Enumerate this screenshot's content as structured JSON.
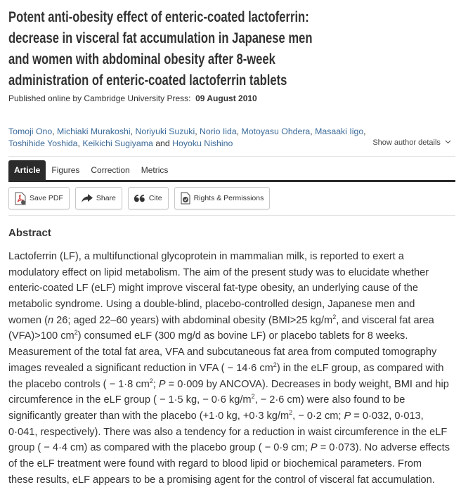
{
  "title_lines": [
    "Potent anti-obesity effect of enteric-coated lactoferrin:",
    "decrease in visceral fat accumulation in Japanese men",
    "and women with abdominal obesity after 8-week",
    "administration of enteric-coated lactoferrin tablets"
  ],
  "published": {
    "label": "Published online by Cambridge University Press:",
    "date": "09 August 2010"
  },
  "authors": {
    "row1": [
      "Tomoji Ono",
      "Michiaki Murakoshi",
      "Noriyuki Suzuki",
      "Norio Iida",
      "Motoyasu Ohdera",
      "Masaaki Iigo"
    ],
    "row2": [
      "Toshihide Yoshida",
      "Keikichi Sugiyama",
      "Hoyoku Nishino"
    ],
    "and": "and",
    "show_details": "Show author details"
  },
  "tabs": [
    {
      "label": "Article",
      "active": true
    },
    {
      "label": "Figures"
    },
    {
      "label": "Correction"
    },
    {
      "label": "Metrics"
    }
  ],
  "actions": [
    {
      "label": "Save PDF",
      "icon": "pdf-icon"
    },
    {
      "label": "Share",
      "icon": "share-icon"
    },
    {
      "label": "Cite",
      "icon": "quote-icon"
    },
    {
      "label": "Rights & Permissions",
      "icon": "document-check-icon"
    }
  ],
  "abstract": {
    "heading": "Abstract",
    "lines": [
      [
        {
          "t": "Lactoferrin (LF), a multifunctional glycoprotein in mammalian milk, is reported to exert a"
        }
      ],
      [
        {
          "t": "modulatory effect on lipid metabolism. The aim of the present study was to elucidate whether"
        }
      ],
      [
        {
          "t": "enteric-coated LF (eLF) might improve visceral fat-type obesity, an underlying cause of the"
        }
      ],
      [
        {
          "t": "metabolic syndrome. Using a double-blind, placebo-controlled design, Japanese men and"
        }
      ],
      [
        {
          "t": "women ("
        },
        {
          "t": "n",
          "i": true
        },
        {
          "t": " 26; aged 22–60 years) with abdominal obesity (BMI>25 kg/m"
        },
        {
          "t": "2",
          "sup": true
        },
        {
          "t": ", and visceral fat area"
        }
      ],
      [
        {
          "t": "(VFA)>100 cm"
        },
        {
          "t": "2",
          "sup": true
        },
        {
          "t": ") consumed eLF (300 mg/d as bovine LF) or placebo tablets for 8 weeks."
        }
      ],
      [
        {
          "t": "Measurement of the total fat area, VFA and subcutaneous fat area from computed tomography"
        }
      ],
      [
        {
          "t": "images revealed a significant reduction in VFA ( − 14·6 cm"
        },
        {
          "t": "2",
          "sup": true
        },
        {
          "t": ") in the eLF group, as compared with"
        }
      ],
      [
        {
          "t": "the placebo controls ( − 1·8 cm"
        },
        {
          "t": "2",
          "sup": true
        },
        {
          "t": "; "
        },
        {
          "t": "P",
          "i": true
        },
        {
          "t": " = 0·009 by ANCOVA). Decreases in body weight, BMI and hip"
        }
      ],
      [
        {
          "t": "circumference in the eLF group ( − 1·5 kg,  − 0·6 kg/m"
        },
        {
          "t": "2",
          "sup": true
        },
        {
          "t": ",  − 2·6 cm) were also found to be"
        }
      ],
      [
        {
          "t": "significantly greater than with the placebo (+1·0 kg, +0·3 kg/m"
        },
        {
          "t": "2",
          "sup": true
        },
        {
          "t": ",  − 0·2 cm; "
        },
        {
          "t": "P",
          "i": true
        },
        {
          "t": " = 0·032, 0·013,"
        }
      ],
      [
        {
          "t": "0·041, respectively). There was also a tendency for a reduction in waist circumference in the eLF"
        }
      ],
      [
        {
          "t": "group ( − 4·4 cm) as compared with the placebo group ( − 0·9 cm; "
        },
        {
          "t": "P",
          "i": true
        },
        {
          "t": " = 0·073). No adverse effects"
        }
      ],
      [
        {
          "t": "of the eLF treatment were found with regard to blood lipid or biochemical parameters. From"
        }
      ],
      [
        {
          "t": "these results, eLF appears to be a promising agent for the control of visceral fat accumulation."
        }
      ]
    ]
  },
  "colors": {
    "text": "#333333",
    "author_link": "#3a6a98",
    "tab_active_bg": "#2b2b2b"
  }
}
